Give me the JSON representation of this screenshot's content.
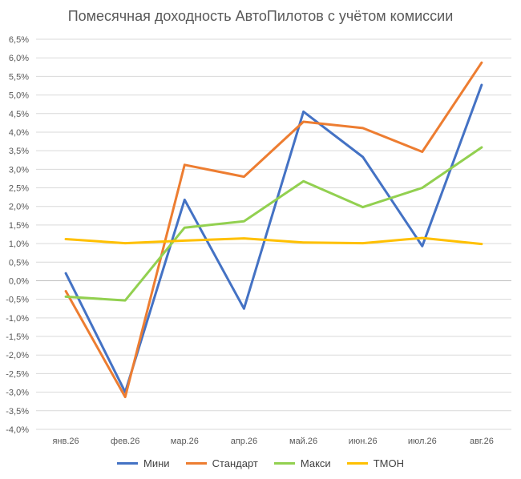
{
  "chart_data": {
    "type": "line",
    "title": "Помесячная доходность АвтоПилотов с учётом комиссии",
    "xlabel": "",
    "ylabel": "",
    "categories": [
      "янв.26",
      "фев.26",
      "мар.26",
      "апр.26",
      "май.26",
      "июн.26",
      "июл.26",
      "авг.26"
    ],
    "yticks": [
      "-4,0%",
      "-3,5%",
      "-3,0%",
      "-2,5%",
      "-2,0%",
      "-1,5%",
      "-1,0%",
      "-0,5%",
      "0,0%",
      "0,5%",
      "1,0%",
      "1,5%",
      "2,0%",
      "2,5%",
      "3,0%",
      "3,5%",
      "4,0%",
      "4,5%",
      "5,0%",
      "5,5%",
      "6,0%",
      "6,5%"
    ],
    "ylim": [
      -4.0,
      6.5
    ],
    "grid": true,
    "legend": "bottom",
    "series": [
      {
        "name": "Мини",
        "color": "#4472C4",
        "values": [
          0.2,
          -3.0,
          2.18,
          -0.75,
          4.55,
          3.33,
          0.93,
          5.27
        ]
      },
      {
        "name": "Стандарт",
        "color": "#ED7D31",
        "values": [
          -0.28,
          -3.13,
          3.12,
          2.8,
          4.28,
          4.11,
          3.47,
          5.87
        ]
      },
      {
        "name": "Макси",
        "color": "#92D050",
        "values": [
          -0.43,
          -0.53,
          1.43,
          1.6,
          2.68,
          1.98,
          2.5,
          3.59
        ]
      },
      {
        "name": "ТМОН",
        "color": "#FFC000",
        "values": [
          1.12,
          1.01,
          1.08,
          1.14,
          1.03,
          1.01,
          1.15,
          0.99
        ]
      }
    ]
  }
}
